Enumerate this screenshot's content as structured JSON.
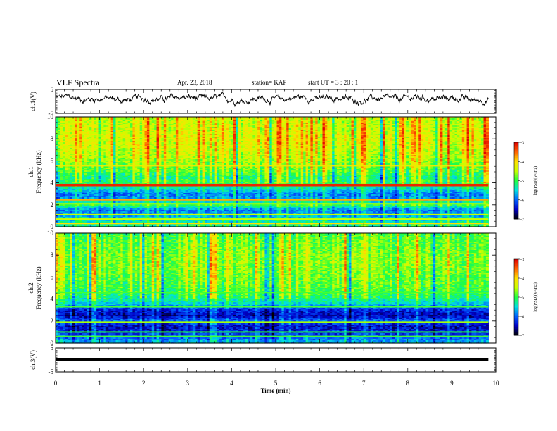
{
  "header": {
    "title": "VLF Spectra",
    "date": "Apr. 23, 2018",
    "station": "station= KAP",
    "start": "start  UT =   3 : 20 : 1"
  },
  "colorbar": {
    "label": "log(PSD)(V²/Hz)",
    "ticks": [
      "-3",
      "-4",
      "-5",
      "-6",
      "-7"
    ],
    "range": [
      -7,
      -3
    ],
    "colors": [
      "#000000",
      "#0000c8",
      "#0060ff",
      "#00e0e0",
      "#20ff40",
      "#c8ff00",
      "#ffe000",
      "#ff6000",
      "#e00000"
    ]
  },
  "chart_data": [
    {
      "type": "line",
      "ylabel": "ch.1(V)",
      "ylim": [
        -5,
        5
      ],
      "yticks": [
        "5",
        "-5"
      ],
      "xlim": [
        0,
        10
      ],
      "baseline": 1.1,
      "amplitude": 1.8,
      "color": "#000000"
    },
    {
      "type": "heatmap",
      "ylabel_channel": "ch.1",
      "ylabel": "Frequency (kHz)",
      "ylim": [
        0,
        10
      ],
      "yticks": [
        "0",
        "2",
        "4",
        "6",
        "8",
        "10"
      ],
      "xlim": [
        0,
        10
      ],
      "x_extent": 9.83,
      "level_profile": [
        {
          "f": 0.0,
          "v": -5.2
        },
        {
          "f": 0.5,
          "v": -5.4
        },
        {
          "f": 1.0,
          "v": -5.7
        },
        {
          "f": 1.5,
          "v": -5.9
        },
        {
          "f": 2.0,
          "v": -5.0
        },
        {
          "f": 2.5,
          "v": -5.8
        },
        {
          "f": 3.0,
          "v": -5.9
        },
        {
          "f": 3.5,
          "v": -5.4
        },
        {
          "f": 4.0,
          "v": -5.0
        },
        {
          "f": 4.5,
          "v": -5.2
        },
        {
          "f": 5.0,
          "v": -4.9
        },
        {
          "f": 6.0,
          "v": -4.6
        },
        {
          "f": 7.0,
          "v": -4.4
        },
        {
          "f": 8.0,
          "v": -4.3
        },
        {
          "f": 9.0,
          "v": -4.4
        },
        {
          "f": 10.0,
          "v": -4.5
        }
      ],
      "lines": [
        {
          "f": 0.3,
          "v": -4.0
        },
        {
          "f": 0.7,
          "v": -4.5
        },
        {
          "f": 1.1,
          "v": -4.5
        },
        {
          "f": 2.1,
          "v": -4.6
        },
        {
          "f": 2.45,
          "v": -3.8
        },
        {
          "f": 3.75,
          "v": -3.2
        },
        {
          "f": 3.85,
          "v": -3.2
        },
        {
          "f": 5.55,
          "v": -4.2
        }
      ]
    },
    {
      "type": "heatmap",
      "ylabel_channel": "ch.2",
      "ylabel": "Frequency (kHz)",
      "ylim": [
        0,
        10
      ],
      "yticks": [
        "0",
        "2",
        "4",
        "6",
        "8",
        "10"
      ],
      "xlim": [
        0,
        10
      ],
      "x_extent": 9.83,
      "level_profile": [
        {
          "f": 0.0,
          "v": -5.6
        },
        {
          "f": 0.5,
          "v": -6.0
        },
        {
          "f": 1.0,
          "v": -6.3
        },
        {
          "f": 1.5,
          "v": -6.5
        },
        {
          "f": 2.0,
          "v": -6.0
        },
        {
          "f": 2.5,
          "v": -6.5
        },
        {
          "f": 3.0,
          "v": -6.3
        },
        {
          "f": 3.5,
          "v": -5.6
        },
        {
          "f": 4.0,
          "v": -5.2
        },
        {
          "f": 4.5,
          "v": -5.0
        },
        {
          "f": 5.0,
          "v": -4.9
        },
        {
          "f": 6.0,
          "v": -4.8
        },
        {
          "f": 7.0,
          "v": -4.7
        },
        {
          "f": 8.0,
          "v": -4.7
        },
        {
          "f": 9.0,
          "v": -4.8
        },
        {
          "f": 10.0,
          "v": -4.9
        }
      ],
      "lines": [
        {
          "f": 0.6,
          "v": -4.9
        },
        {
          "f": 1.0,
          "v": -5.0
        },
        {
          "f": 1.9,
          "v": -4.6
        },
        {
          "f": 3.3,
          "v": -4.9
        },
        {
          "f": 4.6,
          "v": -4.9
        }
      ]
    },
    {
      "type": "line",
      "ylabel": "ch.3(V)",
      "ylim": [
        -5,
        5
      ],
      "yticks": [
        "5",
        "-5"
      ],
      "xlim": [
        0,
        10
      ],
      "value": 0,
      "xlabel": "Time (min)",
      "xticks": [
        "0",
        "1",
        "2",
        "3",
        "4",
        "5",
        "6",
        "7",
        "8",
        "9",
        "10"
      ],
      "color": "#000000"
    }
  ]
}
